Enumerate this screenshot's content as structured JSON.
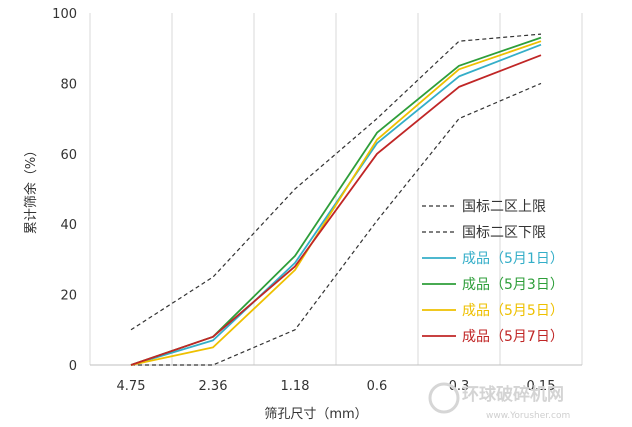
{
  "chart_data": {
    "type": "line",
    "categories": [
      "4.75",
      "2.36",
      "1.18",
      "0.6",
      "0.3",
      "0.15"
    ],
    "xlabel": "筛孔尺寸（mm）",
    "ylabel": "累计筛余（%）",
    "ylim": [
      0,
      100
    ],
    "yticks": [
      "0",
      "20",
      "40",
      "60",
      "80",
      "100"
    ],
    "grid": "vertical",
    "legend_position": "right",
    "series": [
      {
        "name": "国标二区上限",
        "values": [
          10,
          25,
          50,
          70,
          92,
          94
        ],
        "color": "#333333",
        "dashed": true
      },
      {
        "name": "国标二区下限",
        "values": [
          0,
          0,
          10,
          41,
          70,
          80
        ],
        "color": "#333333",
        "dashed": true
      },
      {
        "name": "成品（5月1日）",
        "values": [
          0,
          7,
          29,
          63,
          82,
          91
        ],
        "color": "#34aec8",
        "dashed": false
      },
      {
        "name": "成品（5月3日）",
        "values": [
          0,
          8,
          31,
          66,
          85,
          93
        ],
        "color": "#2e9e3a",
        "dashed": false
      },
      {
        "name": "成品（5月5日）",
        "values": [
          0,
          5,
          27,
          64,
          84,
          92
        ],
        "color": "#eec000",
        "dashed": false
      },
      {
        "name": "成品（5月7日）",
        "values": [
          0,
          8,
          28,
          60,
          79,
          88
        ],
        "color": "#c02626",
        "dashed": false
      }
    ]
  },
  "watermark": {
    "text": "环球破碎机网",
    "sub": "www.Yorusher.com"
  }
}
